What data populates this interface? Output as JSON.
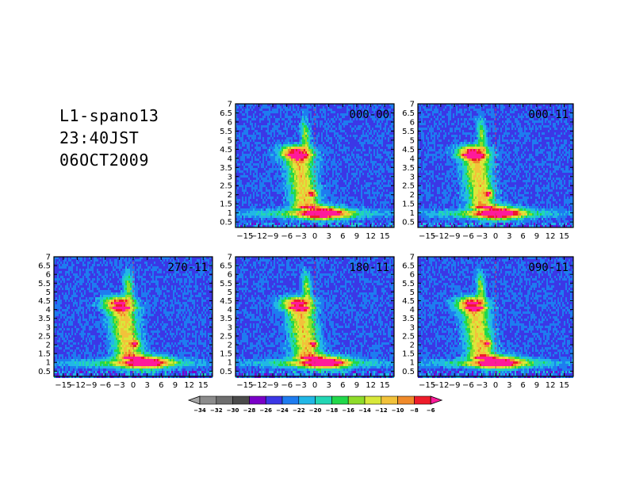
{
  "header": {
    "line1": "L1-spano13",
    "line2": "23:40JST",
    "line3": "06OCT2009"
  },
  "chart_data": [
    {
      "type": "heatmap",
      "label": "000-00",
      "xlim": [
        -17,
        17
      ],
      "ylim": [
        0.2,
        7
      ],
      "xticks": [
        -15,
        -12,
        -9,
        -6,
        -3,
        0,
        3,
        6,
        9,
        12,
        15
      ],
      "xtick_labels": [
        "−15",
        "−12",
        "−9",
        "−6",
        "−3",
        "0",
        "3",
        "6",
        "9",
        "12",
        "15"
      ],
      "yticks": [
        0.5,
        1,
        1.5,
        2,
        2.5,
        3,
        3.5,
        4,
        4.5,
        5,
        5.5,
        6,
        6.5,
        7
      ],
      "ytick_labels": [
        "0.5",
        "1",
        "1.5",
        "2",
        "2.5",
        "3",
        "3.5",
        "4",
        "4.5",
        "5",
        "5.5",
        "6",
        "6.5",
        "7"
      ],
      "xshift": 0.0
    },
    {
      "type": "heatmap",
      "label": "000-11",
      "xlim": [
        -17,
        17
      ],
      "ylim": [
        0.2,
        7
      ],
      "xticks": [
        -15,
        -12,
        -9,
        -6,
        -3,
        0,
        3,
        6,
        9,
        12,
        15
      ],
      "xtick_labels": [
        "−15",
        "−12",
        "−9",
        "−6",
        "−3",
        "0",
        "3",
        "6",
        "9",
        "12",
        "15"
      ],
      "yticks": [
        0.5,
        1,
        1.5,
        2,
        2.5,
        3,
        3.5,
        4,
        4.5,
        5,
        5.5,
        6,
        6.5,
        7
      ],
      "ytick_labels": [
        "0.5",
        "1",
        "1.5",
        "2",
        "2.5",
        "3",
        "3.5",
        "4",
        "4.5",
        "5",
        "5.5",
        "6",
        "6.5",
        "7"
      ],
      "xshift": -1.0
    },
    {
      "type": "heatmap",
      "label": "270-11",
      "xlim": [
        -17,
        17
      ],
      "ylim": [
        0.2,
        7
      ],
      "xticks": [
        -15,
        -12,
        -9,
        -6,
        -3,
        0,
        3,
        6,
        9,
        12,
        15
      ],
      "xtick_labels": [
        "−15",
        "−12",
        "−9",
        "−6",
        "−3",
        "0",
        "3",
        "6",
        "9",
        "12",
        "15"
      ],
      "yticks": [
        0.5,
        1,
        1.5,
        2,
        2.5,
        3,
        3.5,
        4,
        4.5,
        5,
        5.5,
        6,
        6.5,
        7
      ],
      "ytick_labels": [
        "0.5",
        "1",
        "1.5",
        "2",
        "2.5",
        "3",
        "3.5",
        "4",
        "4.5",
        "5",
        "5.5",
        "6",
        "6.5",
        "7"
      ],
      "xshift": 1.0
    },
    {
      "type": "heatmap",
      "label": "180-11",
      "xlim": [
        -17,
        17
      ],
      "ylim": [
        0.2,
        7
      ],
      "xticks": [
        -15,
        -12,
        -9,
        -6,
        -3,
        0,
        3,
        6,
        9,
        12,
        15
      ],
      "xtick_labels": [
        "−15",
        "−12",
        "−9",
        "−6",
        "−3",
        "0",
        "3",
        "6",
        "9",
        "12",
        "15"
      ],
      "yticks": [
        0.5,
        1,
        1.5,
        2,
        2.5,
        3,
        3.5,
        4,
        4.5,
        5,
        5.5,
        6,
        6.5,
        7
      ],
      "ytick_labels": [
        "0.5",
        "1",
        "1.5",
        "2",
        "2.5",
        "3",
        "3.5",
        "4",
        "4.5",
        "5",
        "5.5",
        "6",
        "6.5",
        "7"
      ],
      "xshift": 0.3
    },
    {
      "type": "heatmap",
      "label": "090-11",
      "xlim": [
        -17,
        17
      ],
      "ylim": [
        0.2,
        7
      ],
      "xticks": [
        -15,
        -12,
        -9,
        -6,
        -3,
        0,
        3,
        6,
        9,
        12,
        15
      ],
      "xtick_labels": [
        "−15",
        "−12",
        "−9",
        "−6",
        "−3",
        "0",
        "3",
        "6",
        "9",
        "12",
        "15"
      ],
      "yticks": [
        0.5,
        1,
        1.5,
        2,
        2.5,
        3,
        3.5,
        4,
        4.5,
        5,
        5.5,
        6,
        6.5,
        7
      ],
      "ytick_labels": [
        "0.5",
        "1",
        "1.5",
        "2",
        "2.5",
        "3",
        "3.5",
        "4",
        "4.5",
        "5",
        "5.5",
        "6",
        "6.5",
        "7"
      ],
      "xshift": -1.2
    }
  ],
  "colorbar": {
    "labels": [
      "−34",
      "−32",
      "−30",
      "−28",
      "−26",
      "−24",
      "−22",
      "−20",
      "−18",
      "−16",
      "−14",
      "−12",
      "−10",
      "−8",
      "−6"
    ],
    "colors": [
      "#a6a6a6",
      "#8c8c8c",
      "#6e6e6e",
      "#4b4b4b",
      "#7a00c8",
      "#3b37e6",
      "#1e7cf0",
      "#21b7e6",
      "#22d6b4",
      "#21d84a",
      "#8fdc2a",
      "#d8e83a",
      "#f2c23a",
      "#f08a2a",
      "#ee1c2a",
      "#ff1a9a"
    ]
  }
}
